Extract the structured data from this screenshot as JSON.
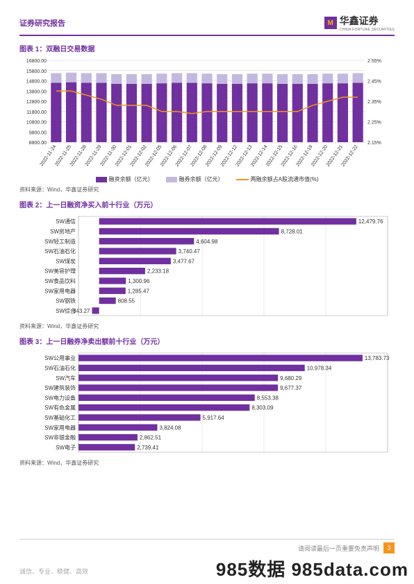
{
  "header": {
    "title": "证券研究报告",
    "logo_text": "华鑫证券",
    "logo_sub": "CHINA FORTUNE SECURITIES"
  },
  "chart1": {
    "title": "图表 1：双融日交易数据",
    "type": "bar+line",
    "dates": [
      "2022-11-24",
      "2022-11-25",
      "2022-11-28",
      "2022-11-29",
      "2022-11-30",
      "2022-12-01",
      "2022-12-02",
      "2022-12-05",
      "2022-12-06",
      "2022-12-07",
      "2022-12-08",
      "2022-12-09",
      "2022-12-12",
      "2022-12-13",
      "2022-12-14",
      "2022-12-15",
      "2022-12-16",
      "2022-12-19",
      "2022-12-20",
      "2022-12-21",
      "2022-12-22"
    ],
    "margin_finance": [
      14600,
      14650,
      14600,
      14600,
      14500,
      14500,
      14500,
      14550,
      14600,
      14600,
      14550,
      14500,
      14500,
      14550,
      14550,
      14500,
      14500,
      14500,
      14550,
      14550,
      14600
    ],
    "margin_short": [
      950,
      950,
      950,
      950,
      950,
      950,
      950,
      950,
      950,
      950,
      950,
      950,
      950,
      950,
      950,
      950,
      950,
      950,
      950,
      950,
      950
    ],
    "ratio_pct": [
      2.4,
      2.4,
      2.38,
      2.36,
      2.33,
      2.33,
      2.33,
      2.3,
      2.3,
      2.29,
      2.3,
      2.3,
      2.3,
      2.3,
      2.3,
      2.3,
      2.3,
      2.33,
      2.35,
      2.37,
      2.37
    ],
    "y1_min": 8800,
    "y1_max": 16800,
    "y1_step": 1000,
    "y2_min": 2.15,
    "y2_max": 2.55,
    "y2_step": 0.1,
    "bar1_color": "#7030a0",
    "bar2_color": "#c5b8e0",
    "line_color": "#f7941d",
    "grid_color": "#d0d0d0",
    "background_color": "#ffffff",
    "legend": [
      "融资余额（亿元）",
      "融券余额（亿元）",
      "两融余额占A股流通市值(%)"
    ]
  },
  "chart2": {
    "title": "图表 2：上一日融资净买入前十行业（万元）",
    "type": "bar-horizontal",
    "categories": [
      "SW通信",
      "SW房地产",
      "SW轻工制造",
      "SW石油石化",
      "SW煤炭",
      "SW美容护理",
      "SW食品饮料",
      "SW家用电器",
      "SW钢铁",
      "SW综合"
    ],
    "values": [
      12479.76,
      8728.01,
      4604.98,
      3740.47,
      3477.67,
      2233.18,
      1300.96,
      1285.47,
      808.55,
      -343.27
    ],
    "bar_color": "#7030a0",
    "grid_color": "#d0d0d0",
    "x_max": 14000
  },
  "chart3": {
    "title": "图表 3：上一日融券净卖出额前十行业（万元）",
    "type": "bar-horizontal",
    "categories": [
      "SW公用事业",
      "SW石油石化",
      "SW汽车",
      "SW建筑装饰",
      "SW电力设备",
      "SW有色金属",
      "SW基础化工",
      "SW家用电器",
      "SW非银金融",
      "SW电子"
    ],
    "values": [
      13783.73,
      10978.34,
      9680.29,
      9677.37,
      8553.38,
      8303.09,
      5917.64,
      3824.08,
      2862.51,
      2739.41
    ],
    "bar_color": "#7030a0",
    "grid_color": "#d0d0d0",
    "x_max": 15000
  },
  "source": "资料来源：Wind，华鑫证券研究",
  "footer": {
    "text": "请阅读最后一页重要免责声明",
    "page": "3"
  },
  "tagline": "诚信、专业、稳健、高效",
  "watermark": "985数据 985data.com"
}
